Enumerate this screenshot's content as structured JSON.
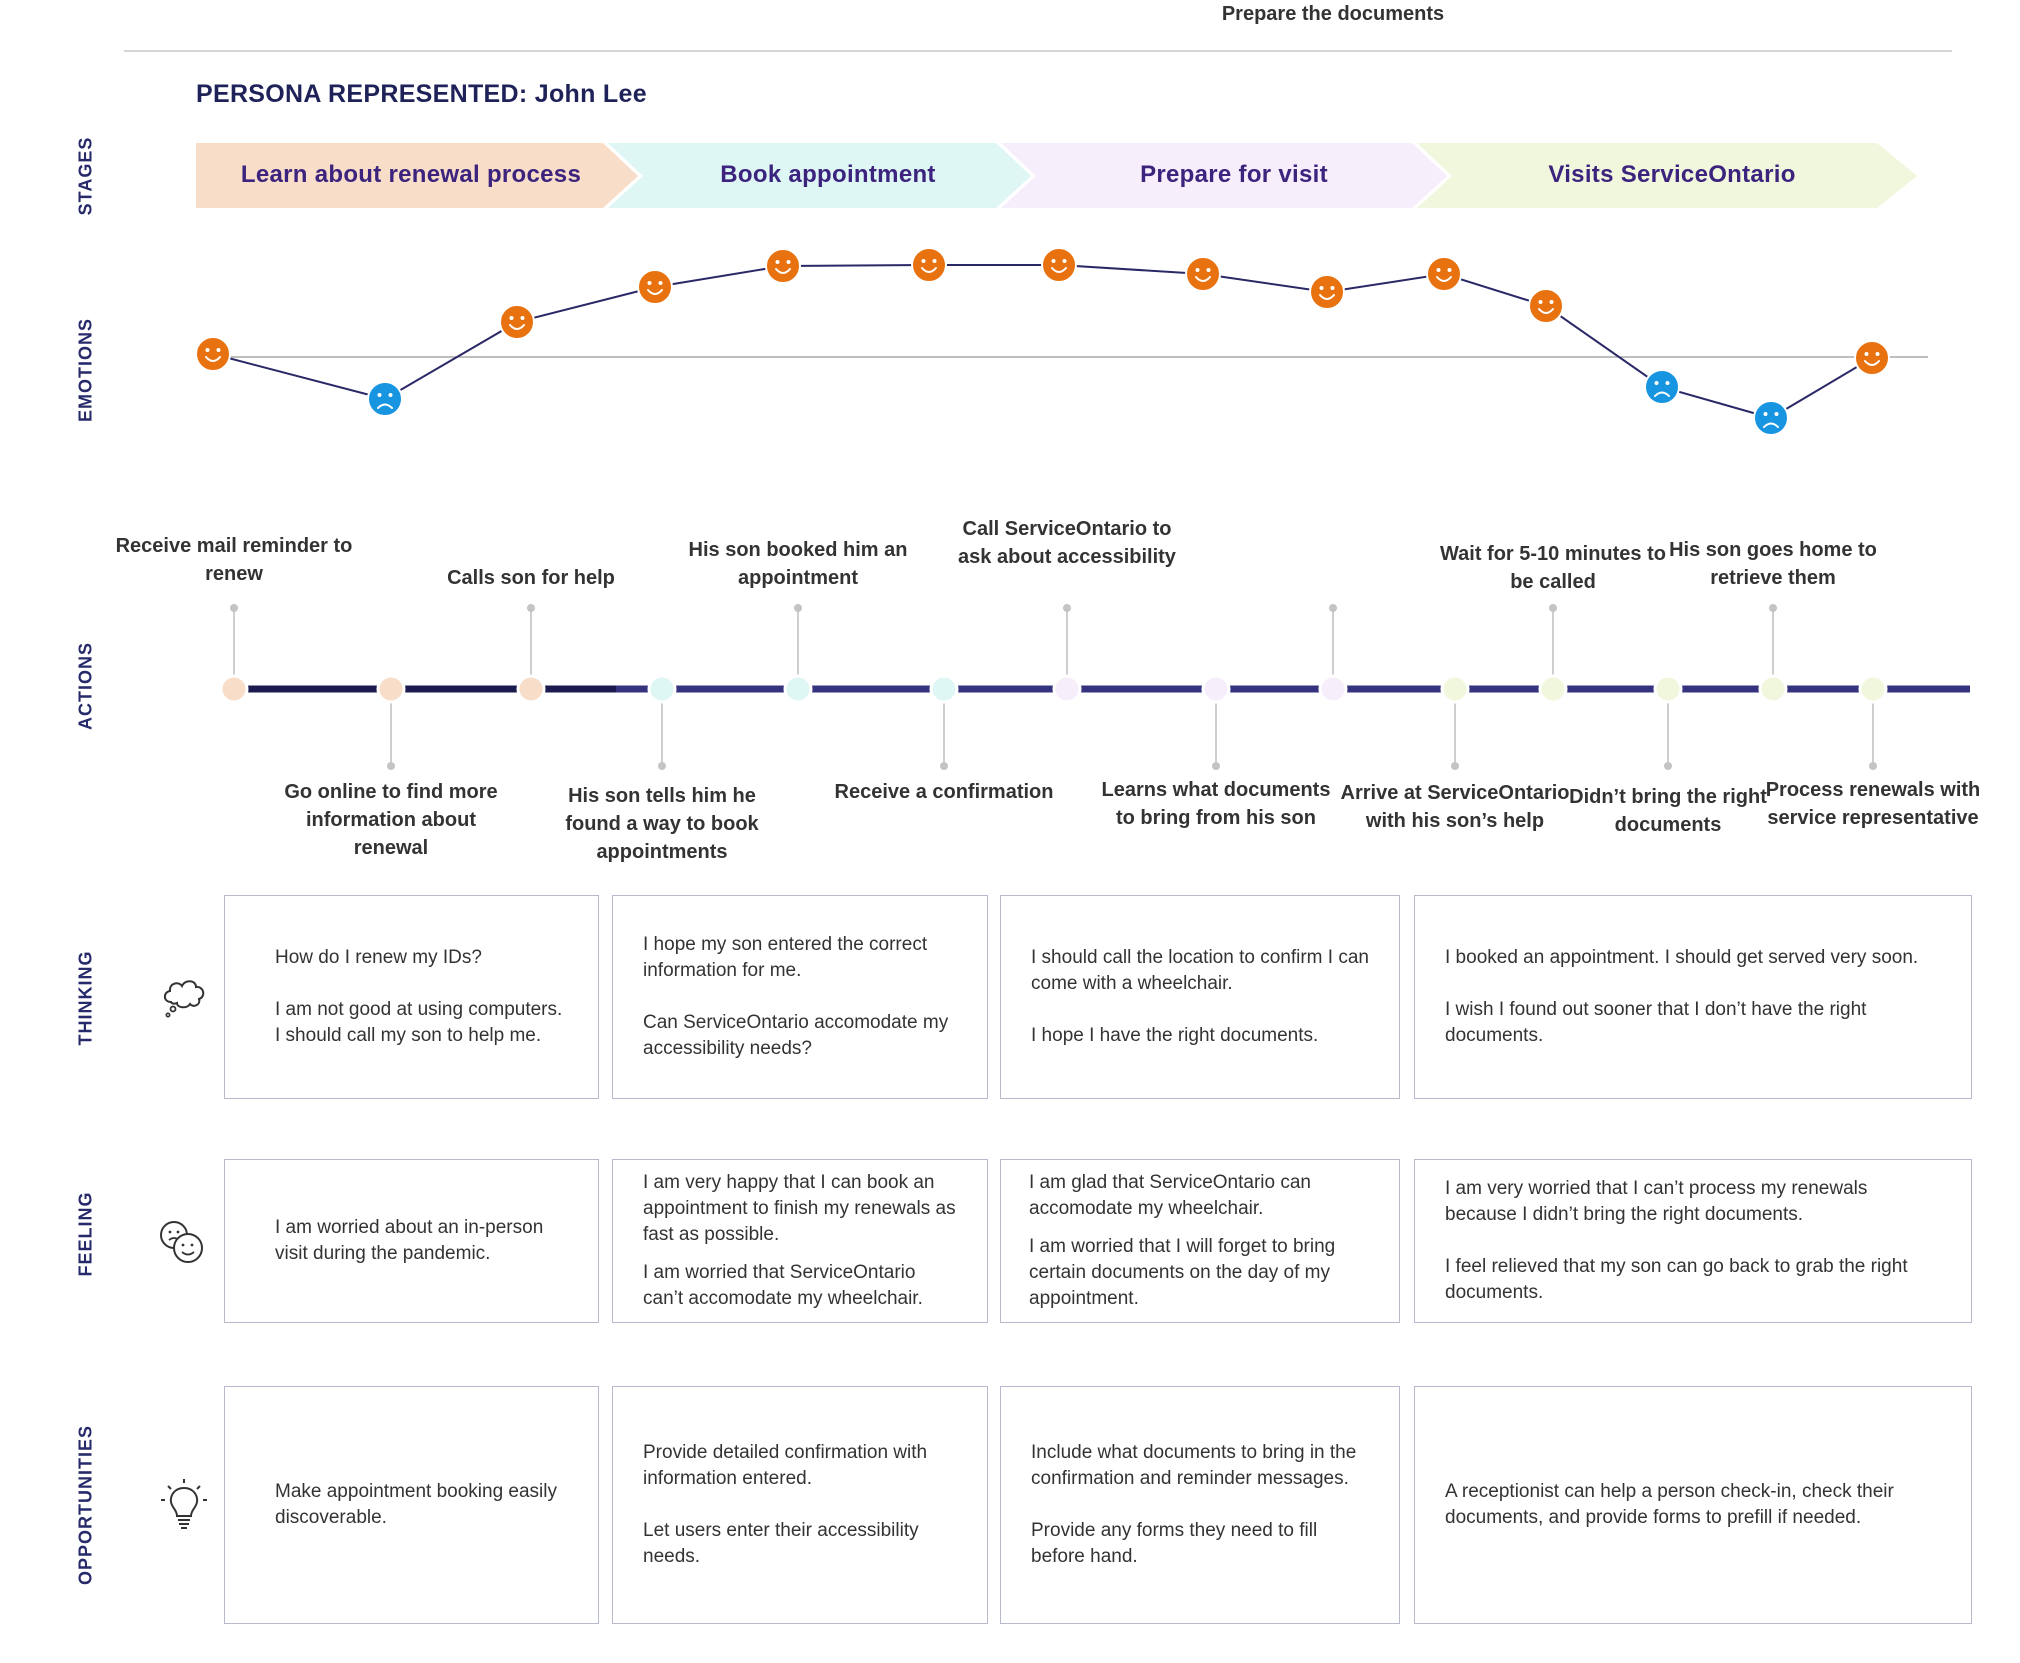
{
  "persona_label": "PERSONA REPRESENTED: John Lee",
  "row_labels": {
    "stages": "STAGES",
    "emotions": "EMOTIONS",
    "actions": "ACTIONS",
    "thinking": "THINKING",
    "feeling": "FEELING",
    "opportunities": "OPPORTUNITIES"
  },
  "stages": [
    {
      "label": "Learn about renewal process",
      "color": "#f8dec9"
    },
    {
      "label": "Book appointment",
      "color": "#def6f4"
    },
    {
      "label": "Prepare for visit",
      "color": "#f6eefb"
    },
    {
      "label": "Visits ServiceOntario",
      "color": "#f1f7dd"
    }
  ],
  "emotions": {
    "positive_color": "#e8720f",
    "negative_color": "#1895e0",
    "line_color": "#2a2866",
    "points": [
      {
        "mood": "happy"
      },
      {
        "mood": "sad"
      },
      {
        "mood": "happy"
      },
      {
        "mood": "happy"
      },
      {
        "mood": "happy"
      },
      {
        "mood": "happy"
      },
      {
        "mood": "happy"
      },
      {
        "mood": "happy"
      },
      {
        "mood": "happy"
      },
      {
        "mood": "happy"
      },
      {
        "mood": "happy"
      },
      {
        "mood": "sad"
      },
      {
        "mood": "sad"
      },
      {
        "mood": "happy"
      }
    ]
  },
  "actions": [
    {
      "label": "Receive mail reminder to renew",
      "side": "above",
      "stage": 0
    },
    {
      "label": "Go online to find more information about renewal",
      "side": "below",
      "stage": 0
    },
    {
      "label": "Calls son for help",
      "side": "above",
      "stage": 0
    },
    {
      "label": "His son tells him he found a way to book appointments",
      "side": "below",
      "stage": 1
    },
    {
      "label": "His son booked him an appointment",
      "side": "above",
      "stage": 1
    },
    {
      "label": "Receive a confirmation",
      "side": "below",
      "stage": 1
    },
    {
      "label": "Call ServiceOntario to ask about accessibility",
      "side": "above",
      "stage": 2
    },
    {
      "label": "Learns what documents to bring from his son",
      "side": "below",
      "stage": 2
    },
    {
      "label": "Prepare the documents",
      "side": "above",
      "stage": 2
    },
    {
      "label": "Arrive at ServiceOntario with his son’s help",
      "side": "below",
      "stage": 3
    },
    {
      "label": "Wait for 5-10 minutes to be called",
      "side": "above",
      "stage": 3
    },
    {
      "label": "Didn’t bring the right documents",
      "side": "below",
      "stage": 3
    },
    {
      "label": "His son goes home to retrieve them",
      "side": "above",
      "stage": 3
    },
    {
      "label": "Process renewals with service representative",
      "side": "below",
      "stage": 3
    }
  ],
  "thinking": [
    [
      "How do I renew my IDs?",
      "I am not good at using computers. I should call my son to help me."
    ],
    [
      "I hope my son entered the correct information for me.",
      "Can ServiceOntario accomodate my accessibility needs?"
    ],
    [
      "I should call the location to confirm I can come with a wheelchair.",
      "I hope I have the right documents."
    ],
    [
      "I booked an appointment. I should get served very soon.",
      "I wish I found out sooner that I don’t have the right documents."
    ]
  ],
  "feeling": [
    [
      "I am worried about an in-person visit during the pandemic."
    ],
    [
      "I am very happy that I can book an appointment to finish my renewals as fast as possible.",
      "I am worried that ServiceOntario can’t accomodate my wheelchair."
    ],
    [
      "I am glad that ServiceOntario can accomodate my wheelchair.",
      "I am worried that I will forget to bring certain documents on the day of my appointment."
    ],
    [
      "I am very worried that I can’t process my renewals because I didn’t bring the right documents.",
      "I feel relieved that my son can go back to grab the right documents."
    ]
  ],
  "opportunities": [
    [
      "Make appointment booking easily discoverable."
    ],
    [
      "Provide detailed confirmation with information entered.",
      "Let users enter their accessibility needs."
    ],
    [
      "Include what documents to bring in the confirmation and reminder messages.",
      "Provide any forms they need to fill before hand."
    ],
    [
      "A receptionist can help a person check-in, check their documents, and provide forms to prefill if needed."
    ]
  ],
  "icons": {
    "thinking": "thought-cloud-icon",
    "feeling": "faces-icon",
    "opportunities": "lightbulb-icon"
  }
}
